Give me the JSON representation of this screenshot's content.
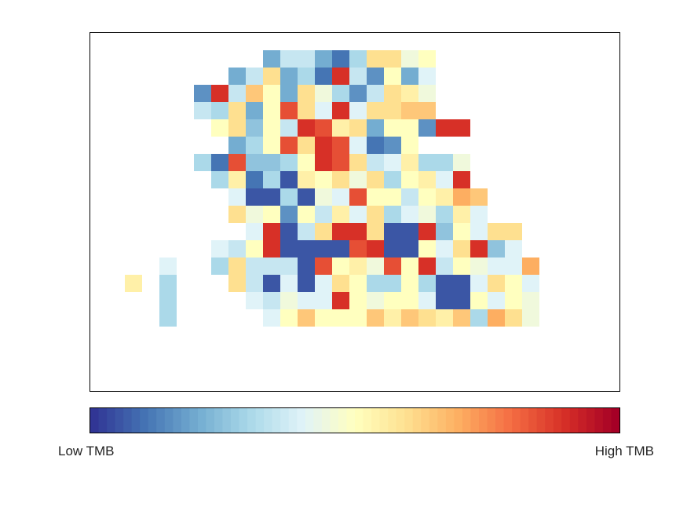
{
  "chart_data": {
    "type": "heatmap",
    "title": "",
    "xlabel": "",
    "ylabel": "",
    "grid": false,
    "colorbar": {
      "orientation": "horizontal",
      "position": "bottom",
      "low_label": "Low TMB",
      "high_label": "High TMB",
      "colormap": "RdYlBu_r",
      "colors": [
        "#313695",
        "#4575b4",
        "#74add1",
        "#abd9e9",
        "#e0f3f8",
        "#ffffbf",
        "#fee090",
        "#fdae61",
        "#f46d43",
        "#d73027",
        "#a50026"
      ]
    },
    "value_scale": "0 = lowest TMB, 1 = highest TMB; blank cells = no data",
    "n_cols": 25,
    "n_rows": 19,
    "cells": [
      [
        0,
        8,
        0.2
      ],
      [
        0,
        9,
        0.35
      ],
      [
        0,
        10,
        0.35
      ],
      [
        0,
        11,
        0.2
      ],
      [
        0,
        12,
        0.1
      ],
      [
        0,
        13,
        0.3
      ],
      [
        0,
        14,
        0.6
      ],
      [
        0,
        15,
        0.6
      ],
      [
        0,
        16,
        0.45
      ],
      [
        0,
        17,
        0.5
      ],
      [
        1,
        6,
        0.2
      ],
      [
        1,
        7,
        0.35
      ],
      [
        1,
        8,
        0.6
      ],
      [
        1,
        9,
        0.2
      ],
      [
        1,
        10,
        0.3
      ],
      [
        1,
        11,
        0.1
      ],
      [
        1,
        12,
        0.9
      ],
      [
        1,
        13,
        0.35
      ],
      [
        1,
        14,
        0.15
      ],
      [
        1,
        15,
        0.5
      ],
      [
        1,
        16,
        0.2
      ],
      [
        1,
        17,
        0.4
      ],
      [
        2,
        4,
        0.15
      ],
      [
        2,
        5,
        0.9
      ],
      [
        2,
        6,
        0.35
      ],
      [
        2,
        7,
        0.65
      ],
      [
        2,
        8,
        0.5
      ],
      [
        2,
        9,
        0.2
      ],
      [
        2,
        10,
        0.6
      ],
      [
        2,
        11,
        0.45
      ],
      [
        2,
        12,
        0.3
      ],
      [
        2,
        13,
        0.15
      ],
      [
        2,
        14,
        0.35
      ],
      [
        2,
        15,
        0.6
      ],
      [
        2,
        16,
        0.55
      ],
      [
        2,
        17,
        0.45
      ],
      [
        3,
        4,
        0.35
      ],
      [
        3,
        5,
        0.3
      ],
      [
        3,
        6,
        0.6
      ],
      [
        3,
        7,
        0.2
      ],
      [
        3,
        8,
        0.5
      ],
      [
        3,
        9,
        0.85
      ],
      [
        3,
        10,
        0.6
      ],
      [
        3,
        11,
        0.4
      ],
      [
        3,
        12,
        0.9
      ],
      [
        3,
        13,
        0.4
      ],
      [
        3,
        14,
        0.6
      ],
      [
        3,
        15,
        0.6
      ],
      [
        3,
        16,
        0.65
      ],
      [
        3,
        17,
        0.65
      ],
      [
        4,
        5,
        0.5
      ],
      [
        4,
        6,
        0.6
      ],
      [
        4,
        7,
        0.25
      ],
      [
        4,
        8,
        0.5
      ],
      [
        4,
        9,
        0.35
      ],
      [
        4,
        10,
        0.9
      ],
      [
        4,
        11,
        0.85
      ],
      [
        4,
        12,
        0.55
      ],
      [
        4,
        13,
        0.6
      ],
      [
        4,
        14,
        0.2
      ],
      [
        4,
        15,
        0.5
      ],
      [
        4,
        16,
        0.5
      ],
      [
        4,
        17,
        0.15
      ],
      [
        4,
        18,
        0.9
      ],
      [
        4,
        19,
        0.9
      ],
      [
        5,
        6,
        0.2
      ],
      [
        5,
        7,
        0.3
      ],
      [
        5,
        8,
        0.5
      ],
      [
        5,
        9,
        0.85
      ],
      [
        5,
        10,
        0.6
      ],
      [
        5,
        11,
        0.9
      ],
      [
        5,
        12,
        0.85
      ],
      [
        5,
        13,
        0.4
      ],
      [
        5,
        14,
        0.1
      ],
      [
        5,
        15,
        0.15
      ],
      [
        5,
        16,
        0.5
      ],
      [
        6,
        4,
        0.3
      ],
      [
        6,
        5,
        0.1
      ],
      [
        6,
        6,
        0.85
      ],
      [
        6,
        7,
        0.25
      ],
      [
        6,
        8,
        0.25
      ],
      [
        6,
        9,
        0.3
      ],
      [
        6,
        10,
        0.5
      ],
      [
        6,
        11,
        0.9
      ],
      [
        6,
        12,
        0.85
      ],
      [
        6,
        13,
        0.6
      ],
      [
        6,
        14,
        0.35
      ],
      [
        6,
        15,
        0.4
      ],
      [
        6,
        16,
        0.55
      ],
      [
        6,
        17,
        0.3
      ],
      [
        6,
        18,
        0.3
      ],
      [
        6,
        19,
        0.45
      ],
      [
        7,
        5,
        0.3
      ],
      [
        7,
        6,
        0.55
      ],
      [
        7,
        7,
        0.1
      ],
      [
        7,
        8,
        0.3
      ],
      [
        7,
        9,
        0.05
      ],
      [
        7,
        10,
        0.55
      ],
      [
        7,
        11,
        0.5
      ],
      [
        7,
        12,
        0.6
      ],
      [
        7,
        13,
        0.45
      ],
      [
        7,
        14,
        0.6
      ],
      [
        7,
        15,
        0.3
      ],
      [
        7,
        16,
        0.5
      ],
      [
        7,
        17,
        0.55
      ],
      [
        7,
        18,
        0.4
      ],
      [
        7,
        19,
        0.9
      ],
      [
        8,
        6,
        0.4
      ],
      [
        8,
        7,
        0.05
      ],
      [
        8,
        8,
        0.05
      ],
      [
        8,
        9,
        0.3
      ],
      [
        8,
        10,
        0.05
      ],
      [
        8,
        11,
        0.45
      ],
      [
        8,
        12,
        0.4
      ],
      [
        8,
        13,
        0.85
      ],
      [
        8,
        14,
        0.5
      ],
      [
        8,
        15,
        0.5
      ],
      [
        8,
        16,
        0.35
      ],
      [
        8,
        17,
        0.5
      ],
      [
        8,
        18,
        0.55
      ],
      [
        8,
        19,
        0.7
      ],
      [
        8,
        20,
        0.65
      ],
      [
        9,
        6,
        0.6
      ],
      [
        9,
        7,
        0.45
      ],
      [
        9,
        8,
        0.5
      ],
      [
        9,
        9,
        0.15
      ],
      [
        9,
        10,
        0.5
      ],
      [
        9,
        11,
        0.35
      ],
      [
        9,
        12,
        0.55
      ],
      [
        9,
        13,
        0.4
      ],
      [
        9,
        14,
        0.6
      ],
      [
        9,
        15,
        0.3
      ],
      [
        9,
        16,
        0.4
      ],
      [
        9,
        17,
        0.45
      ],
      [
        9,
        18,
        0.3
      ],
      [
        9,
        19,
        0.55
      ],
      [
        9,
        20,
        0.4
      ],
      [
        10,
        7,
        0.4
      ],
      [
        10,
        8,
        0.9
      ],
      [
        10,
        9,
        0.05
      ],
      [
        10,
        10,
        0.35
      ],
      [
        10,
        11,
        0.6
      ],
      [
        10,
        12,
        0.9
      ],
      [
        10,
        13,
        0.9
      ],
      [
        10,
        14,
        0.6
      ],
      [
        10,
        15,
        0.05
      ],
      [
        10,
        16,
        0.05
      ],
      [
        10,
        17,
        0.9
      ],
      [
        10,
        18,
        0.25
      ],
      [
        10,
        19,
        0.5
      ],
      [
        10,
        20,
        0.4
      ],
      [
        10,
        21,
        0.6
      ],
      [
        10,
        22,
        0.6
      ],
      [
        11,
        5,
        0.4
      ],
      [
        11,
        6,
        0.35
      ],
      [
        11,
        7,
        0.5
      ],
      [
        11,
        8,
        0.9
      ],
      [
        11,
        9,
        0.05
      ],
      [
        11,
        10,
        0.05
      ],
      [
        11,
        11,
        0.05
      ],
      [
        11,
        12,
        0.05
      ],
      [
        11,
        13,
        0.85
      ],
      [
        11,
        14,
        0.9
      ],
      [
        11,
        15,
        0.05
      ],
      [
        11,
        16,
        0.05
      ],
      [
        11,
        17,
        0.5
      ],
      [
        11,
        18,
        0.4
      ],
      [
        11,
        19,
        0.6
      ],
      [
        11,
        20,
        0.9
      ],
      [
        11,
        21,
        0.25
      ],
      [
        11,
        22,
        0.4
      ],
      [
        12,
        2,
        0.4
      ],
      [
        12,
        5,
        0.3
      ],
      [
        12,
        6,
        0.6
      ],
      [
        12,
        7,
        0.35
      ],
      [
        12,
        8,
        0.35
      ],
      [
        12,
        9,
        0.35
      ],
      [
        12,
        10,
        0.05
      ],
      [
        12,
        11,
        0.85
      ],
      [
        12,
        12,
        0.5
      ],
      [
        12,
        13,
        0.55
      ],
      [
        12,
        14,
        0.45
      ],
      [
        12,
        15,
        0.85
      ],
      [
        12,
        16,
        0.5
      ],
      [
        12,
        17,
        0.9
      ],
      [
        12,
        18,
        0.35
      ],
      [
        12,
        19,
        0.5
      ],
      [
        12,
        20,
        0.45
      ],
      [
        12,
        21,
        0.4
      ],
      [
        12,
        22,
        0.4
      ],
      [
        12,
        23,
        0.7
      ],
      [
        13,
        0,
        0.55
      ],
      [
        13,
        2,
        0.3
      ],
      [
        13,
        6,
        0.6
      ],
      [
        13,
        7,
        0.35
      ],
      [
        13,
        8,
        0.05
      ],
      [
        13,
        9,
        0.4
      ],
      [
        13,
        10,
        0.05
      ],
      [
        13,
        11,
        0.4
      ],
      [
        13,
        12,
        0.6
      ],
      [
        13,
        13,
        0.5
      ],
      [
        13,
        14,
        0.3
      ],
      [
        13,
        15,
        0.3
      ],
      [
        13,
        16,
        0.5
      ],
      [
        13,
        17,
        0.3
      ],
      [
        13,
        18,
        0.05
      ],
      [
        13,
        19,
        0.05
      ],
      [
        13,
        20,
        0.4
      ],
      [
        13,
        21,
        0.6
      ],
      [
        13,
        22,
        0.5
      ],
      [
        13,
        23,
        0.4
      ],
      [
        14,
        2,
        0.3
      ],
      [
        14,
        7,
        0.4
      ],
      [
        14,
        8,
        0.35
      ],
      [
        14,
        9,
        0.45
      ],
      [
        14,
        10,
        0.4
      ],
      [
        14,
        11,
        0.4
      ],
      [
        14,
        12,
        0.9
      ],
      [
        14,
        13,
        0.5
      ],
      [
        14,
        14,
        0.45
      ],
      [
        14,
        15,
        0.5
      ],
      [
        14,
        16,
        0.5
      ],
      [
        14,
        17,
        0.4
      ],
      [
        14,
        18,
        0.05
      ],
      [
        14,
        19,
        0.05
      ],
      [
        14,
        20,
        0.5
      ],
      [
        14,
        21,
        0.4
      ],
      [
        14,
        22,
        0.5
      ],
      [
        14,
        23,
        0.45
      ],
      [
        15,
        2,
        0.3
      ],
      [
        15,
        8,
        0.4
      ],
      [
        15,
        9,
        0.5
      ],
      [
        15,
        10,
        0.65
      ],
      [
        15,
        11,
        0.5
      ],
      [
        15,
        12,
        0.5
      ],
      [
        15,
        13,
        0.5
      ],
      [
        15,
        14,
        0.65
      ],
      [
        15,
        15,
        0.55
      ],
      [
        15,
        16,
        0.65
      ],
      [
        15,
        17,
        0.6
      ],
      [
        15,
        18,
        0.55
      ],
      [
        15,
        19,
        0.65
      ],
      [
        15,
        20,
        0.3
      ],
      [
        15,
        21,
        0.7
      ],
      [
        15,
        22,
        0.6
      ],
      [
        15,
        23,
        0.45
      ]
    ]
  }
}
